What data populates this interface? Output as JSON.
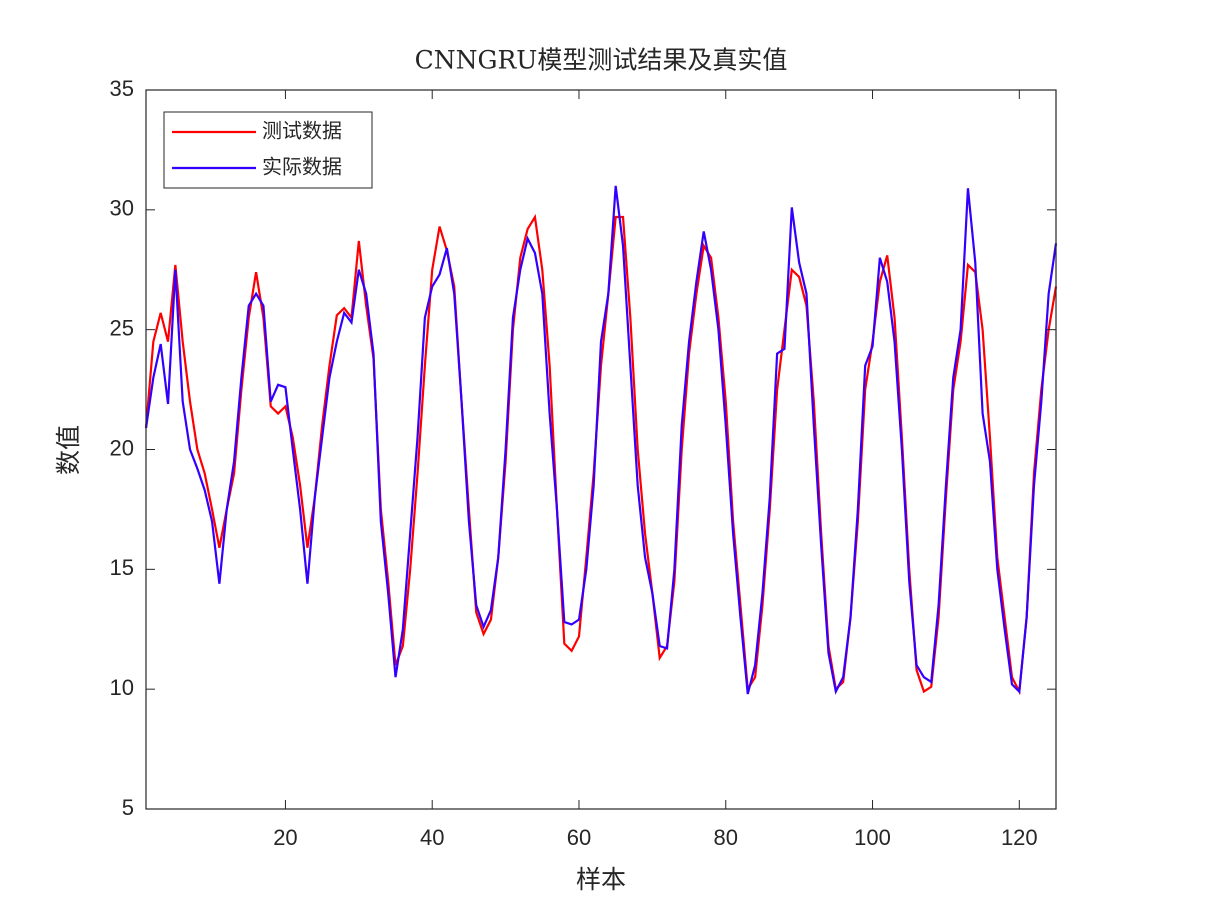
{
  "chart_data": {
    "type": "line",
    "title": "CNNGRU模型测试结果及真实值",
    "x_label": "样本",
    "y_label": "数值",
    "x": [
      1,
      2,
      3,
      4,
      5,
      6,
      7,
      8,
      9,
      10,
      11,
      12,
      13,
      14,
      15,
      16,
      17,
      18,
      19,
      20,
      21,
      22,
      23,
      24,
      25,
      26,
      27,
      28,
      29,
      30,
      31,
      32,
      33,
      34,
      35,
      36,
      37,
      38,
      39,
      40,
      41,
      42,
      43,
      44,
      45,
      46,
      47,
      48,
      49,
      50,
      51,
      52,
      53,
      54,
      55,
      56,
      57,
      58,
      59,
      60,
      61,
      62,
      63,
      64,
      65,
      66,
      67,
      68,
      69,
      70,
      71,
      72,
      73,
      74,
      75,
      76,
      77,
      78,
      79,
      80,
      81,
      82,
      83,
      84,
      85,
      86,
      87,
      88,
      89,
      90,
      91,
      92,
      93,
      94,
      95,
      96,
      97,
      98,
      99,
      100,
      101,
      102,
      103,
      104,
      105,
      106,
      107,
      108,
      109,
      110,
      111,
      112,
      113,
      114,
      115,
      116,
      117,
      118,
      119,
      120,
      121,
      122,
      123,
      124,
      125
    ],
    "series": [
      {
        "name": "测试数据",
        "color": "#ff0000",
        "values": [
          20.9,
          24.5,
          25.7,
          24.5,
          27.7,
          24.5,
          22.0,
          20.0,
          19.0,
          17.5,
          15.9,
          17.5,
          19.0,
          22.5,
          25.5,
          27.4,
          25.5,
          21.8,
          21.5,
          21.8,
          20.5,
          18.5,
          15.9,
          18.0,
          21.0,
          23.5,
          25.6,
          25.9,
          25.5,
          28.7,
          26.0,
          23.8,
          17.5,
          14.5,
          11.0,
          11.8,
          15.0,
          19.0,
          23.5,
          27.5,
          29.3,
          28.3,
          26.8,
          22.0,
          17.5,
          13.2,
          12.3,
          12.9,
          15.5,
          19.5,
          25.0,
          28.0,
          29.2,
          29.7,
          27.5,
          23.5,
          17.5,
          11.9,
          11.6,
          12.2,
          15.5,
          19.0,
          23.5,
          26.5,
          29.7,
          29.7,
          25.5,
          20.0,
          16.5,
          14.0,
          11.3,
          11.8,
          14.5,
          20.0,
          24.0,
          26.5,
          28.5,
          28.0,
          25.5,
          22.0,
          17.0,
          13.5,
          10.0,
          10.5,
          13.5,
          17.5,
          22.5,
          25.0,
          27.5,
          27.2,
          26.0,
          22.0,
          16.5,
          11.8,
          10.0,
          10.3,
          13.0,
          17.0,
          22.5,
          24.5,
          27.0,
          28.1,
          25.5,
          20.5,
          15.0,
          10.8,
          9.9,
          10.1,
          13.0,
          18.0,
          22.5,
          24.5,
          27.7,
          27.4,
          25.0,
          20.5,
          15.5,
          13.0,
          10.5,
          9.9,
          13.0,
          19.0,
          22.5,
          25.0,
          26.8
        ]
      },
      {
        "name": "实际数据",
        "color": "#3300ff",
        "values": [
          20.9,
          23.0,
          24.4,
          21.9,
          27.5,
          22.0,
          20.0,
          19.2,
          18.3,
          17.0,
          14.4,
          17.5,
          19.5,
          23.0,
          26.0,
          26.5,
          26.0,
          22.0,
          22.7,
          22.6,
          20.0,
          17.5,
          14.4,
          18.0,
          20.5,
          23.0,
          24.5,
          25.7,
          25.3,
          27.5,
          26.5,
          24.0,
          17.0,
          14.0,
          10.5,
          12.5,
          16.5,
          20.5,
          25.5,
          26.8,
          27.3,
          28.4,
          26.5,
          22.0,
          17.0,
          13.5,
          12.6,
          13.3,
          15.5,
          20.0,
          25.5,
          27.5,
          28.8,
          28.2,
          26.5,
          21.5,
          17.5,
          12.8,
          12.7,
          12.9,
          15.0,
          18.5,
          24.5,
          26.5,
          31.0,
          28.5,
          23.5,
          18.5,
          15.5,
          14.0,
          11.8,
          11.7,
          15.0,
          21.0,
          24.5,
          27.0,
          29.1,
          27.5,
          25.0,
          21.0,
          16.5,
          13.0,
          9.8,
          11.0,
          14.0,
          18.0,
          24.0,
          24.2,
          30.1,
          27.8,
          26.5,
          21.0,
          16.0,
          11.5,
          9.9,
          10.5,
          13.0,
          17.5,
          23.5,
          24.3,
          28.0,
          27.0,
          24.5,
          20.0,
          14.5,
          11.0,
          10.5,
          10.3,
          13.5,
          18.5,
          23.0,
          25.0,
          30.9,
          27.8,
          21.5,
          19.5,
          15.0,
          12.5,
          10.2,
          9.9,
          13.0,
          18.5,
          22.0,
          26.5,
          28.6
        ]
      }
    ],
    "xlim": [
      1,
      125
    ],
    "xticks": [
      20,
      40,
      60,
      80,
      100,
      120
    ],
    "ylim": [
      5,
      35
    ],
    "yticks": [
      5,
      10,
      15,
      20,
      25,
      30,
      35
    ],
    "grid": false,
    "legend": "northwest"
  }
}
